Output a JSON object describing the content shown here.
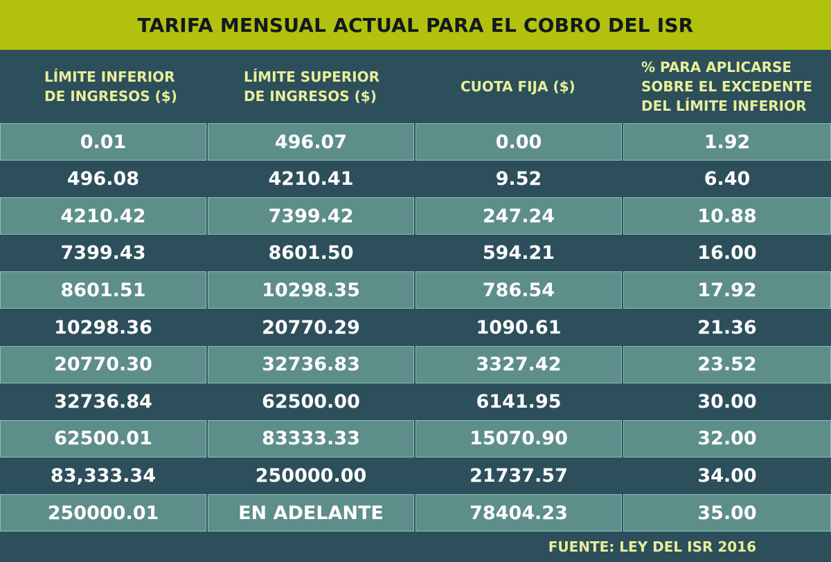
{
  "title": "TARIFA MENSUAL ACTUAL PARA EL COBRO DEL ISR",
  "source": "FUENTE: LEY DEL ISR 2016",
  "chart_data": {
    "type": "table",
    "title": "TARIFA MENSUAL ACTUAL PARA EL COBRO DEL ISR",
    "columns": [
      "LÍMITE INFERIOR\nDE INGRESOS ($)",
      "LÍMITE SUPERIOR\nDE INGRESOS ($)",
      "CUOTA FIJA ($)",
      "% PARA APLICARSE\nSOBRE EL EXCEDENTE\nDEL LÍMITE INFERIOR"
    ],
    "rows": [
      [
        "0.01",
        "496.07",
        "0.00",
        "1.92"
      ],
      [
        "496.08",
        "4210.41",
        "9.52",
        "6.40"
      ],
      [
        "4210.42",
        "7399.42",
        "247.24",
        "10.88"
      ],
      [
        "7399.43",
        "8601.50",
        "594.21",
        "16.00"
      ],
      [
        "8601.51",
        "10298.35",
        "786.54",
        "17.92"
      ],
      [
        "10298.36",
        "20770.29",
        "1090.61",
        "21.36"
      ],
      [
        "20770.30",
        "32736.83",
        "3327.42",
        "23.52"
      ],
      [
        "32736.84",
        "62500.00",
        "6141.95",
        "30.00"
      ],
      [
        "62500.01",
        "83333.33",
        "15070.90",
        "32.00"
      ],
      [
        "83,333.34",
        "250000.00",
        "21737.57",
        "34.00"
      ],
      [
        "250000.01",
        "EN ADELANTE",
        "78404.23",
        "35.00"
      ]
    ],
    "source": "FUENTE: LEY DEL ISR 2016"
  }
}
